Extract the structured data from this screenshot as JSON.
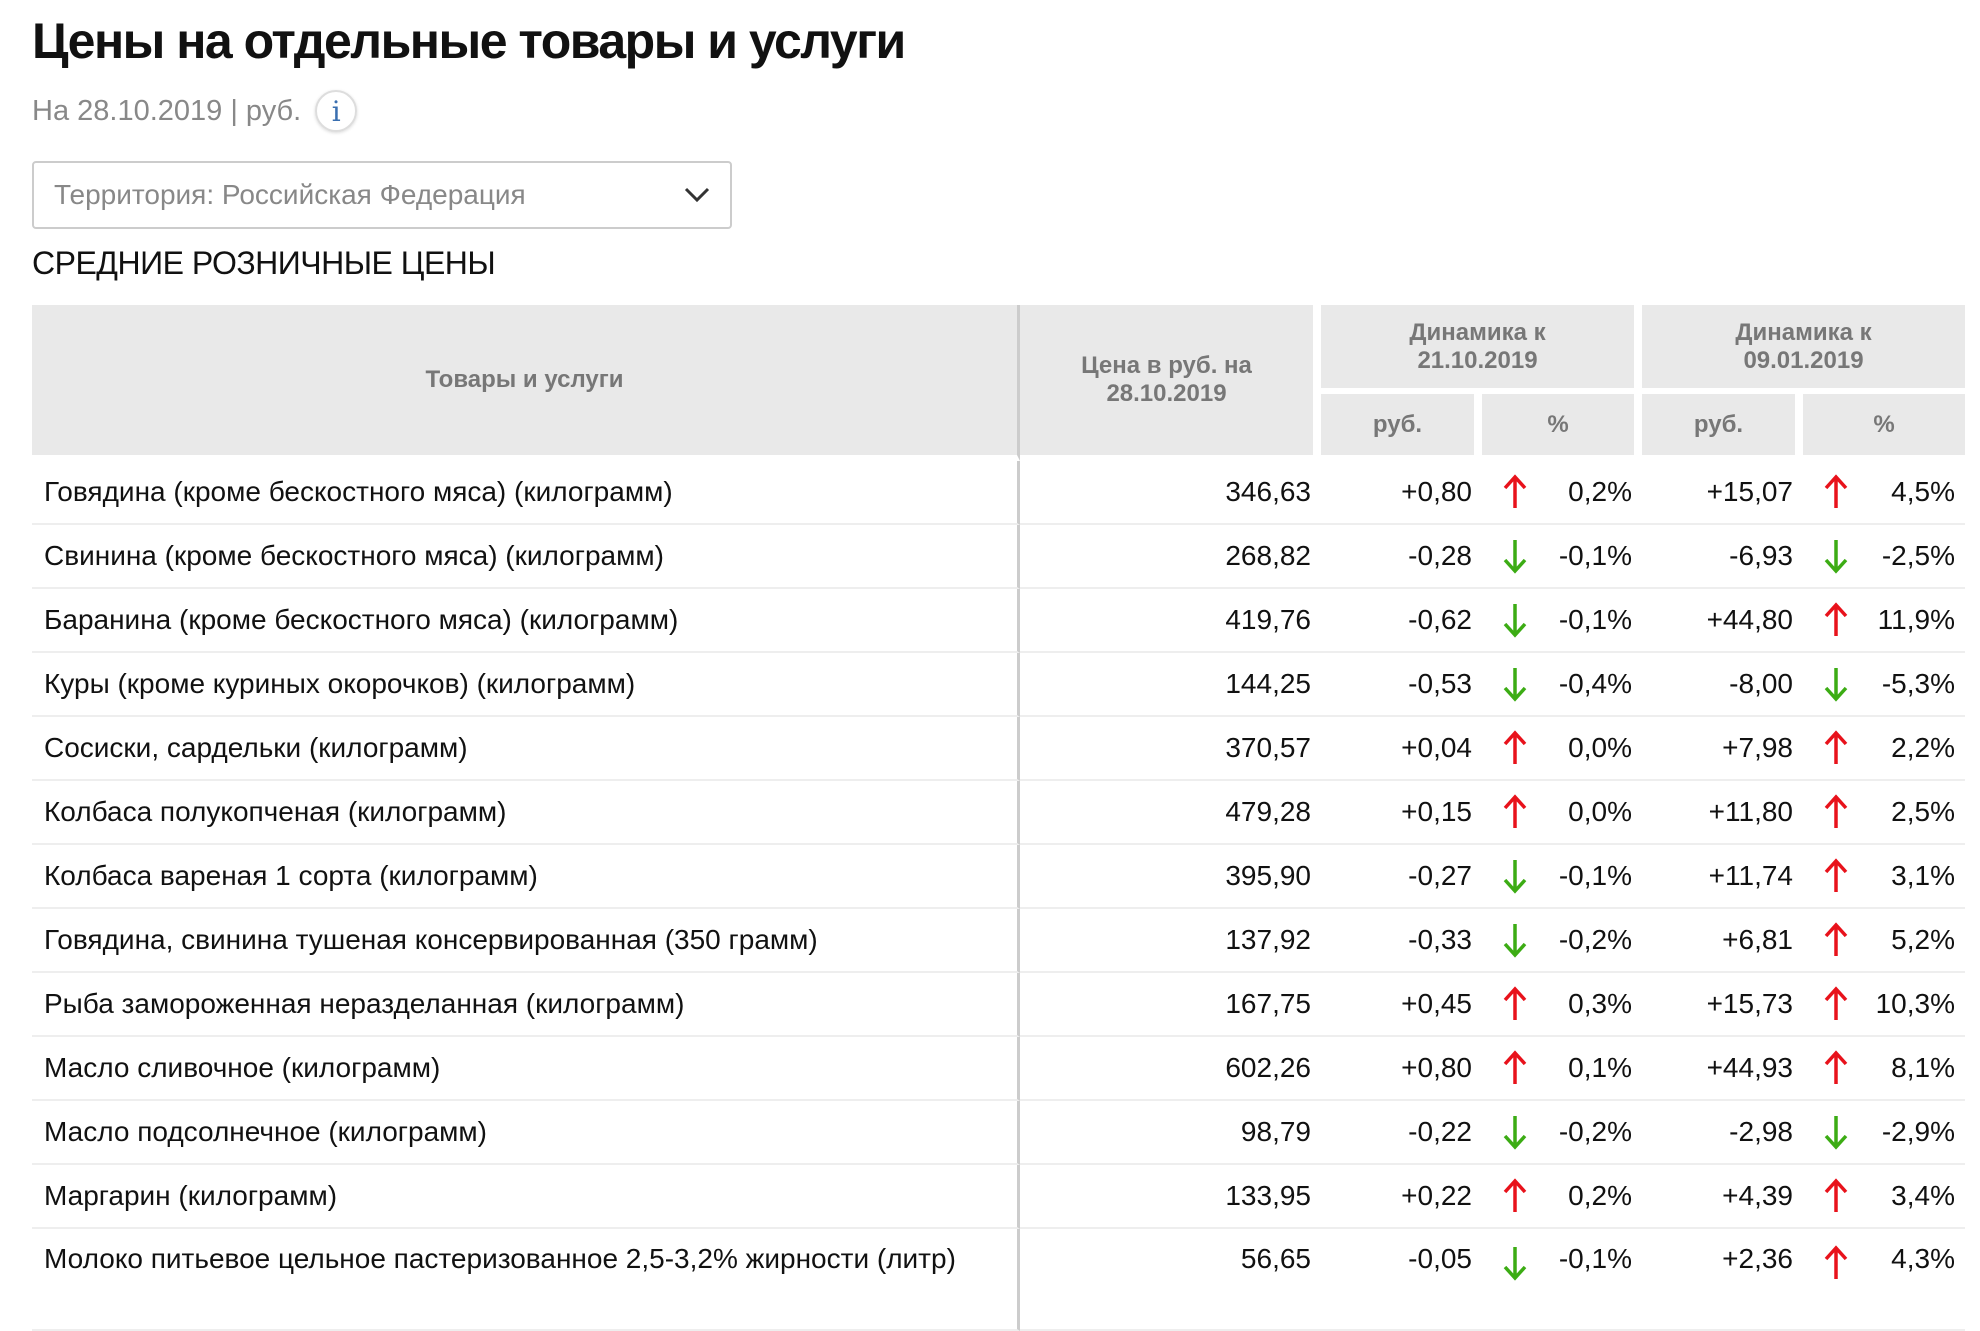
{
  "title": "Цены на отдельные товары и услуги",
  "subtitle": "На 28.10.2019 | руб.",
  "info_icon": "i",
  "territory_select": "Территория: Российская  Федерация",
  "section_title": "СРЕДНИЕ РОЗНИЧНЫЕ ЦЕНЫ",
  "colors": {
    "up": "#e8121b",
    "down": "#3cac14",
    "header_bg": "#e9e9e9"
  },
  "table": {
    "headers": {
      "goods": "Товары и услуги",
      "price": "Цена в руб. на 28.10.2019",
      "dyn1": "Динамика к 21.10.2019",
      "dyn2": "Динамика к 09.01.2019",
      "rub": "руб.",
      "pct": "%"
    },
    "rows": [
      {
        "name": "Говядина (кроме бескостного мяса) (килограмм)",
        "price": "346,63",
        "d1_rub": "+0,80",
        "d1_dir": "up",
        "d1_pct": "0,2%",
        "d2_rub": "+15,07",
        "d2_dir": "up",
        "d2_pct": "4,5%"
      },
      {
        "name": "Свинина (кроме бескостного мяса) (килограмм)",
        "price": "268,82",
        "d1_rub": "-0,28",
        "d1_dir": "down",
        "d1_pct": "-0,1%",
        "d2_rub": "-6,93",
        "d2_dir": "down",
        "d2_pct": "-2,5%"
      },
      {
        "name": "Баранина (кроме бескостного мяса) (килограмм)",
        "price": "419,76",
        "d1_rub": "-0,62",
        "d1_dir": "down",
        "d1_pct": "-0,1%",
        "d2_rub": "+44,80",
        "d2_dir": "up",
        "d2_pct": "11,9%"
      },
      {
        "name": "Куры (кроме куриных окорочков) (килограмм)",
        "price": "144,25",
        "d1_rub": "-0,53",
        "d1_dir": "down",
        "d1_pct": "-0,4%",
        "d2_rub": "-8,00",
        "d2_dir": "down",
        "d2_pct": "-5,3%"
      },
      {
        "name": "Сосиски, сардельки (килограмм)",
        "price": "370,57",
        "d1_rub": "+0,04",
        "d1_dir": "up",
        "d1_pct": "0,0%",
        "d2_rub": "+7,98",
        "d2_dir": "up",
        "d2_pct": "2,2%"
      },
      {
        "name": "Колбаса полукопченая (килограмм)",
        "price": "479,28",
        "d1_rub": "+0,15",
        "d1_dir": "up",
        "d1_pct": "0,0%",
        "d2_rub": "+11,80",
        "d2_dir": "up",
        "d2_pct": "2,5%"
      },
      {
        "name": "Колбаса вареная 1 сорта (килограмм)",
        "price": "395,90",
        "d1_rub": "-0,27",
        "d1_dir": "down",
        "d1_pct": "-0,1%",
        "d2_rub": "+11,74",
        "d2_dir": "up",
        "d2_pct": "3,1%"
      },
      {
        "name": "Говядина, свинина тушеная консервированная (350 грамм)",
        "price": "137,92",
        "d1_rub": "-0,33",
        "d1_dir": "down",
        "d1_pct": "-0,2%",
        "d2_rub": "+6,81",
        "d2_dir": "up",
        "d2_pct": "5,2%"
      },
      {
        "name": "Рыба замороженная неразделанная (килограмм)",
        "price": "167,75",
        "d1_rub": "+0,45",
        "d1_dir": "up",
        "d1_pct": "0,3%",
        "d2_rub": "+15,73",
        "d2_dir": "up",
        "d2_pct": "10,3%"
      },
      {
        "name": "Масло сливочное (килограмм)",
        "price": "602,26",
        "d1_rub": "+0,80",
        "d1_dir": "up",
        "d1_pct": "0,1%",
        "d2_rub": "+44,93",
        "d2_dir": "up",
        "d2_pct": "8,1%"
      },
      {
        "name": "Масло подсолнечное (килограмм)",
        "price": "98,79",
        "d1_rub": "-0,22",
        "d1_dir": "down",
        "d1_pct": "-0,2%",
        "d2_rub": "-2,98",
        "d2_dir": "down",
        "d2_pct": "-2,9%"
      },
      {
        "name": "Маргарин (килограмм)",
        "price": "133,95",
        "d1_rub": "+0,22",
        "d1_dir": "up",
        "d1_pct": "0,2%",
        "d2_rub": "+4,39",
        "d2_dir": "up",
        "d2_pct": "3,4%"
      },
      {
        "name": "Молоко питьевое цельное пастеризованное 2,5-3,2% жирности (литр)",
        "price": "56,65",
        "d1_rub": "-0,05",
        "d1_dir": "down",
        "d1_pct": "-0,1%",
        "d2_rub": "+2,36",
        "d2_dir": "up",
        "d2_pct": "4,3%"
      }
    ]
  }
}
